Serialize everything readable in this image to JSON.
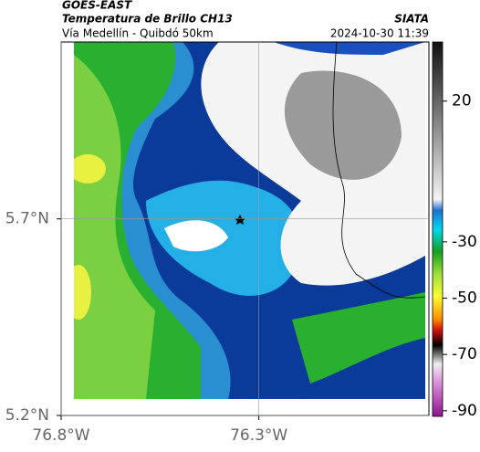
{
  "header": {
    "source": "GOES-EAST",
    "title": "Temperatura de Brillo CH13",
    "route": "Vía Medellín - Quibdó 50km",
    "agency": "SIATA",
    "timestamp": "2024-10-30 11:39"
  },
  "map": {
    "xlim": [
      -76.8,
      -75.87
    ],
    "ylim": [
      5.2,
      6.15
    ],
    "xticks": [
      {
        "value": -76.8,
        "label": "76.8°W"
      },
      {
        "value": -76.3,
        "label": "76.3°W"
      }
    ],
    "yticks": [
      {
        "value": 5.7,
        "label": "5.7°N"
      },
      {
        "value": 5.2,
        "label": "5.2°N"
      }
    ]
  },
  "colorbar": {
    "lim": [
      -92,
      41
    ],
    "ticks": [
      20,
      -30,
      -50,
      -70,
      -90
    ]
  }
}
